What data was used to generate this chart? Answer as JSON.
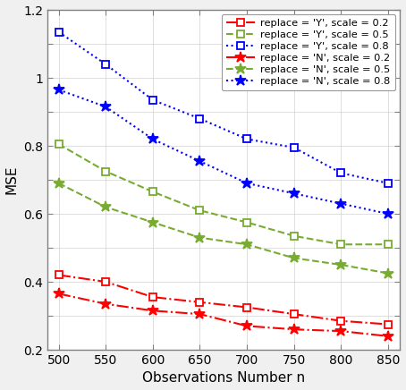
{
  "x": [
    500,
    550,
    600,
    650,
    700,
    750,
    800,
    850
  ],
  "series": [
    {
      "label": "replace = 'Y', scale = 0.2",
      "color": "#ff0000",
      "linestyle": "-.",
      "marker": "s",
      "markerfacecolor": "white",
      "markeredgecolor": "#ff0000",
      "y": [
        0.42,
        0.4,
        0.355,
        0.34,
        0.325,
        0.305,
        0.285,
        0.275
      ]
    },
    {
      "label": "replace = 'Y', scale = 0.5",
      "color": "#77ac30",
      "linestyle": "--",
      "marker": "s",
      "markerfacecolor": "white",
      "markeredgecolor": "#77ac30",
      "y": [
        0.805,
        0.725,
        0.665,
        0.61,
        0.575,
        0.535,
        0.51,
        0.51
      ]
    },
    {
      "label": "replace = 'Y', scale = 0.8",
      "color": "#0000ff",
      "linestyle": ":",
      "marker": "s",
      "markerfacecolor": "white",
      "markeredgecolor": "#0000ff",
      "y": [
        1.135,
        1.04,
        0.935,
        0.88,
        0.82,
        0.795,
        0.72,
        0.69
      ]
    },
    {
      "label": "replace = 'N', scale = 0.2",
      "color": "#ff0000",
      "linestyle": "-.",
      "marker": "*",
      "markerfacecolor": "#ff0000",
      "markeredgecolor": "#ff0000",
      "y": [
        0.365,
        0.335,
        0.315,
        0.305,
        0.27,
        0.26,
        0.255,
        0.24
      ]
    },
    {
      "label": "replace = 'N', scale = 0.5",
      "color": "#77ac30",
      "linestyle": "--",
      "marker": "*",
      "markerfacecolor": "#77ac30",
      "markeredgecolor": "#77ac30",
      "y": [
        0.69,
        0.62,
        0.575,
        0.53,
        0.51,
        0.47,
        0.45,
        0.425
      ]
    },
    {
      "label": "replace = 'N', scale = 0.8",
      "color": "#0000ff",
      "linestyle": ":",
      "marker": "*",
      "markerfacecolor": "#0000ff",
      "markeredgecolor": "#0000ff",
      "y": [
        0.965,
        0.915,
        0.82,
        0.755,
        0.69,
        0.66,
        0.63,
        0.6
      ]
    }
  ],
  "xlabel": "Observations Number n",
  "ylabel": "MSE",
  "xlim": [
    488,
    862
  ],
  "ylim": [
    0.2,
    1.2
  ],
  "xticks": [
    500,
    550,
    600,
    650,
    700,
    750,
    800,
    850
  ],
  "yticks": [
    0.2,
    0.3,
    0.4,
    0.5,
    0.6,
    0.7,
    0.8,
    0.9,
    1.0,
    1.1,
    1.2
  ],
  "ytick_labels": [
    "0.2",
    "",
    "0.4",
    "",
    "0.6",
    "",
    "0.8",
    "",
    "1",
    "",
    "1.2"
  ],
  "legend_loc": "upper right",
  "fig_facecolor": "#f0f0f0",
  "ax_facecolor": "#ffffff"
}
